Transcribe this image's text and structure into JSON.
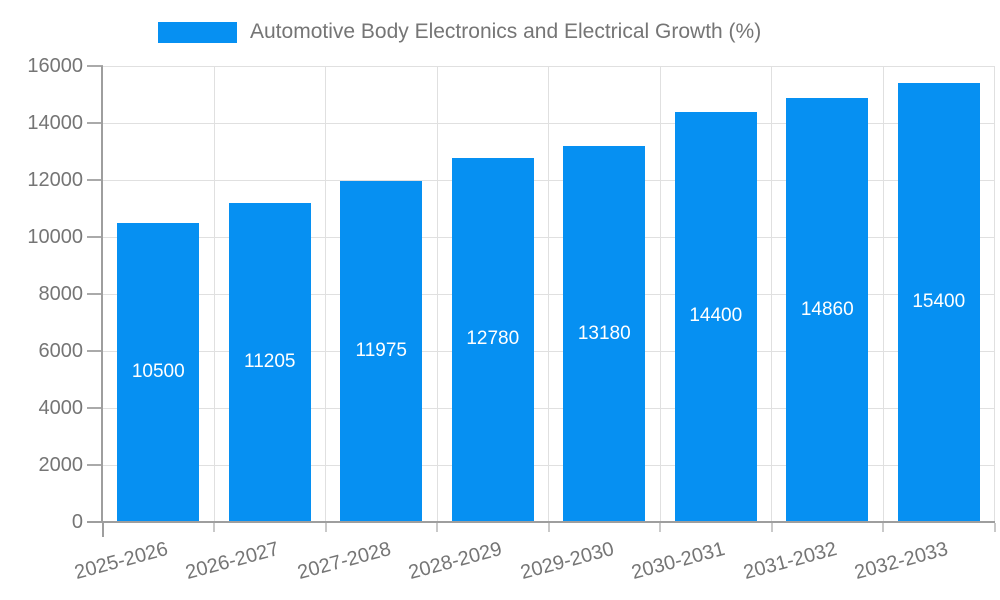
{
  "legend": {
    "label": "Automotive Body Electronics and Electrical Growth (%)"
  },
  "chart_data": {
    "type": "bar",
    "title": "Automotive Body Electronics and Electrical Growth (%)",
    "categories": [
      "2025-2026",
      "2026-2027",
      "2027-2028",
      "2028-2029",
      "2029-2030",
      "2030-2031",
      "2031-2032",
      "2032-2033"
    ],
    "values": [
      10500,
      11205,
      11975,
      12780,
      13180,
      14400,
      14860,
      15400
    ],
    "value_labels": [
      "10500",
      "11205",
      "11975",
      "12780",
      "13180",
      "14400",
      "14860",
      "15400"
    ],
    "xlabel": "",
    "ylabel": "",
    "ylim": [
      0,
      16000
    ],
    "ytick_interval": 2000,
    "ytick_labels": [
      "0",
      "2000",
      "4000",
      "6000",
      "8000",
      "10000",
      "12000",
      "14000",
      "16000"
    ],
    "grid": true,
    "legend_position": "top",
    "value_labels_position": "inside-center",
    "bar_color": "#0690f2",
    "value_label_color": "#ffffff",
    "axis_text_color": "#757575",
    "gridline_color": "#e0e0e0",
    "axis_line_color": "#9e9e9e",
    "tick_color_minor": "#c9c9c9",
    "x_label_rotation_deg": -15
  }
}
